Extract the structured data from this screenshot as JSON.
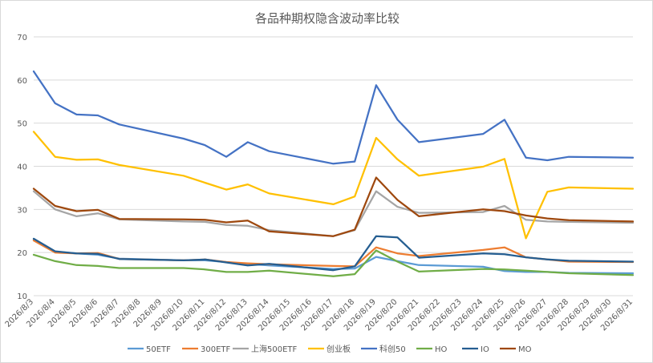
{
  "chart_data": {
    "type": "line",
    "title": "各品种期权隐含波动率比较",
    "xlabel": "",
    "ylabel": "",
    "ylim": [
      10,
      70
    ],
    "yticks": [
      10,
      20,
      30,
      40,
      50,
      60,
      70
    ],
    "grid": true,
    "legend_position": "bottom",
    "categories": [
      "2026/8/3",
      "2026/8/4",
      "2026/8/5",
      "2026/8/6",
      "2026/8/7",
      "2026/8/8",
      "2026/8/9",
      "2026/8/10",
      "2026/8/11",
      "2026/8/12",
      "2026/8/13",
      "2026/8/14",
      "2026/8/15",
      "2026/8/16",
      "2026/8/17",
      "2026/8/18",
      "2026/8/19",
      "2026/8/20",
      "2026/8/21",
      "2026/8/22",
      "2026/8/23",
      "2026/8/24",
      "2026/8/25",
      "2026/8/26",
      "2026/8/27",
      "2026/8/28",
      "2026/8/29",
      "2026/8/30",
      "2026/8/31"
    ],
    "series": [
      {
        "name": "50ETF",
        "color": "#5b9bd5",
        "points": [
          [
            0,
            23.0
          ],
          [
            1,
            20.2
          ],
          [
            2,
            19.8
          ],
          [
            3,
            19.5
          ],
          [
            4,
            18.6
          ],
          [
            7,
            18.2
          ],
          [
            8,
            18.2
          ],
          [
            9,
            17.8
          ],
          [
            10,
            17.4
          ],
          [
            11,
            17.0
          ],
          [
            14,
            16.2
          ],
          [
            15,
            16.3
          ],
          [
            16,
            19.0
          ],
          [
            17,
            18.0
          ],
          [
            18,
            17.1
          ],
          [
            21,
            16.7
          ],
          [
            22,
            15.7
          ],
          [
            23,
            15.5
          ],
          [
            24,
            15.5
          ],
          [
            25,
            15.3
          ],
          [
            28,
            15.2
          ]
        ]
      },
      {
        "name": "300ETF",
        "color": "#ed7d31",
        "points": [
          [
            0,
            22.8
          ],
          [
            1,
            20.0
          ],
          [
            2,
            19.8
          ],
          [
            3,
            19.9
          ],
          [
            4,
            18.5
          ],
          [
            7,
            18.2
          ],
          [
            8,
            18.4
          ],
          [
            9,
            17.8
          ],
          [
            10,
            17.5
          ],
          [
            11,
            17.3
          ],
          [
            14,
            16.9
          ],
          [
            15,
            16.8
          ],
          [
            16,
            21.2
          ],
          [
            17,
            19.8
          ],
          [
            18,
            19.2
          ],
          [
            21,
            20.6
          ],
          [
            22,
            21.2
          ],
          [
            23,
            18.9
          ],
          [
            24,
            18.4
          ],
          [
            25,
            17.9
          ],
          [
            28,
            17.8
          ]
        ]
      },
      {
        "name": "上海500ETF",
        "color": "#a5a5a5",
        "points": [
          [
            0,
            34.2
          ],
          [
            1,
            30.0
          ],
          [
            2,
            28.4
          ],
          [
            3,
            29.1
          ],
          [
            4,
            27.7
          ],
          [
            7,
            27.2
          ],
          [
            8,
            27.1
          ],
          [
            9,
            26.4
          ],
          [
            10,
            26.2
          ],
          [
            11,
            25.2
          ],
          [
            14,
            23.8
          ],
          [
            15,
            25.2
          ],
          [
            16,
            34.2
          ],
          [
            17,
            30.6
          ],
          [
            18,
            29.2
          ],
          [
            21,
            29.4
          ],
          [
            22,
            30.8
          ],
          [
            23,
            27.6
          ],
          [
            24,
            27.2
          ],
          [
            25,
            27.1
          ],
          [
            28,
            26.9
          ]
        ]
      },
      {
        "name": "创业板",
        "color": "#ffc000",
        "points": [
          [
            0,
            48.0
          ],
          [
            1,
            42.2
          ],
          [
            2,
            41.5
          ],
          [
            3,
            41.6
          ],
          [
            4,
            40.3
          ],
          [
            7,
            37.8
          ],
          [
            8,
            36.2
          ],
          [
            9,
            34.6
          ],
          [
            10,
            35.8
          ],
          [
            11,
            33.7
          ],
          [
            14,
            31.2
          ],
          [
            15,
            33.0
          ],
          [
            16,
            46.6
          ],
          [
            17,
            41.6
          ],
          [
            18,
            37.8
          ],
          [
            21,
            39.9
          ],
          [
            22,
            41.7
          ],
          [
            23,
            23.3
          ],
          [
            24,
            34.1
          ],
          [
            25,
            35.1
          ],
          [
            28,
            34.8
          ]
        ]
      },
      {
        "name": "科创50",
        "color": "#4472c4",
        "points": [
          [
            0,
            62.0
          ],
          [
            1,
            54.6
          ],
          [
            2,
            52.0
          ],
          [
            3,
            51.8
          ],
          [
            4,
            49.7
          ],
          [
            7,
            46.4
          ],
          [
            8,
            44.9
          ],
          [
            9,
            42.2
          ],
          [
            10,
            45.6
          ],
          [
            11,
            43.5
          ],
          [
            14,
            40.6
          ],
          [
            15,
            41.1
          ],
          [
            16,
            58.8
          ],
          [
            17,
            50.8
          ],
          [
            18,
            45.6
          ],
          [
            21,
            47.5
          ],
          [
            22,
            50.8
          ],
          [
            23,
            42.0
          ],
          [
            24,
            41.4
          ],
          [
            25,
            42.2
          ],
          [
            28,
            42.0
          ]
        ]
      },
      {
        "name": "HO",
        "color": "#70ad47",
        "points": [
          [
            0,
            19.5
          ],
          [
            1,
            18.0
          ],
          [
            2,
            17.1
          ],
          [
            3,
            16.9
          ],
          [
            4,
            16.4
          ],
          [
            7,
            16.4
          ],
          [
            8,
            16.1
          ],
          [
            9,
            15.5
          ],
          [
            10,
            15.5
          ],
          [
            11,
            15.8
          ],
          [
            14,
            14.5
          ],
          [
            15,
            15.0
          ],
          [
            16,
            20.5
          ],
          [
            17,
            17.9
          ],
          [
            18,
            15.6
          ],
          [
            21,
            16.2
          ],
          [
            22,
            16.1
          ],
          [
            23,
            15.8
          ],
          [
            24,
            15.5
          ],
          [
            25,
            15.2
          ],
          [
            28,
            14.8
          ]
        ]
      },
      {
        "name": "IO",
        "color": "#255e91",
        "points": [
          [
            0,
            23.2
          ],
          [
            1,
            20.3
          ],
          [
            2,
            19.8
          ],
          [
            3,
            19.7
          ],
          [
            4,
            18.5
          ],
          [
            7,
            18.2
          ],
          [
            8,
            18.4
          ],
          [
            9,
            17.7
          ],
          [
            10,
            17.0
          ],
          [
            11,
            17.4
          ],
          [
            14,
            15.9
          ],
          [
            15,
            16.8
          ],
          [
            16,
            23.8
          ],
          [
            17,
            23.5
          ],
          [
            18,
            18.8
          ],
          [
            21,
            19.8
          ],
          [
            22,
            19.6
          ],
          [
            23,
            18.9
          ],
          [
            24,
            18.4
          ],
          [
            25,
            18.1
          ],
          [
            28,
            17.9
          ]
        ]
      },
      {
        "name": "MO",
        "color": "#9e480e",
        "points": [
          [
            0,
            34.8
          ],
          [
            1,
            30.8
          ],
          [
            2,
            29.6
          ],
          [
            3,
            29.9
          ],
          [
            4,
            27.8
          ],
          [
            7,
            27.7
          ],
          [
            8,
            27.6
          ],
          [
            9,
            27.0
          ],
          [
            10,
            27.4
          ],
          [
            11,
            24.9
          ],
          [
            14,
            23.8
          ],
          [
            15,
            25.3
          ],
          [
            16,
            37.4
          ],
          [
            17,
            32.2
          ],
          [
            18,
            28.4
          ],
          [
            21,
            30.0
          ],
          [
            22,
            29.6
          ],
          [
            23,
            28.6
          ],
          [
            24,
            27.9
          ],
          [
            25,
            27.5
          ],
          [
            28,
            27.2
          ]
        ]
      }
    ]
  }
}
